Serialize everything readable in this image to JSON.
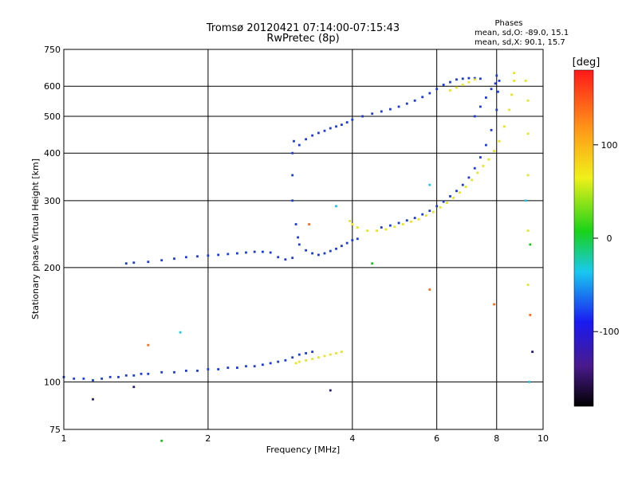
{
  "chart_data": {
    "type": "scatter",
    "title": "Tromsø 20120421 07:14:00-07:15:43",
    "subtitle": "RwPretec (8p)",
    "xlabel": "Frequency [MHz]",
    "ylabel": "Stationary phase Virtual Height [km]",
    "x_scale": "log",
    "y_scale": "log",
    "xlim": [
      1,
      10
    ],
    "ylim": [
      75,
      750
    ],
    "x_ticks": [
      1,
      2,
      4,
      6,
      8,
      10
    ],
    "y_ticks": [
      75,
      100,
      200,
      300,
      400,
      500,
      600,
      750
    ],
    "grid": true,
    "phases_box": {
      "heading": "Phases",
      "line_o": "mean, sd,O: -89.0, 15.1",
      "line_x": "mean, sd,X: 90.1, 15.7"
    },
    "colorbar": {
      "label": "[deg]",
      "range": [
        -180,
        180
      ],
      "ticks": [
        100,
        0,
        -100
      ]
    },
    "series": [
      {
        "phase_deg": -90,
        "color": "#1a3adc",
        "points": [
          [
            1.0,
            103
          ],
          [
            1.05,
            102
          ],
          [
            1.1,
            102
          ],
          [
            1.15,
            101
          ],
          [
            1.2,
            102
          ],
          [
            1.25,
            103
          ],
          [
            1.3,
            103
          ],
          [
            1.35,
            104
          ],
          [
            1.4,
            104
          ],
          [
            1.45,
            105
          ],
          [
            1.5,
            105
          ],
          [
            1.6,
            106
          ],
          [
            1.7,
            106
          ],
          [
            1.8,
            107
          ],
          [
            1.9,
            107
          ],
          [
            2.0,
            108
          ],
          [
            2.1,
            108
          ],
          [
            2.2,
            109
          ],
          [
            2.3,
            109
          ],
          [
            2.4,
            110
          ],
          [
            2.5,
            110
          ],
          [
            2.6,
            111
          ],
          [
            2.7,
            112
          ],
          [
            2.8,
            113
          ],
          [
            2.9,
            114
          ],
          [
            3.0,
            116
          ],
          [
            3.1,
            118
          ],
          [
            3.2,
            119
          ],
          [
            3.3,
            120
          ],
          [
            1.35,
            205
          ],
          [
            1.4,
            206
          ],
          [
            1.5,
            207
          ],
          [
            1.6,
            209
          ],
          [
            1.7,
            211
          ],
          [
            1.8,
            213
          ],
          [
            1.9,
            214
          ],
          [
            2.0,
            215
          ],
          [
            2.1,
            216
          ],
          [
            2.2,
            217
          ],
          [
            2.3,
            218
          ],
          [
            2.4,
            219
          ],
          [
            2.5,
            220
          ],
          [
            2.6,
            220
          ],
          [
            2.7,
            219
          ],
          [
            2.8,
            213
          ],
          [
            2.9,
            210
          ],
          [
            3.0,
            212
          ],
          [
            3.0,
            300
          ],
          [
            3.0,
            350
          ],
          [
            3.0,
            400
          ],
          [
            3.02,
            430
          ],
          [
            3.05,
            260
          ],
          [
            3.08,
            240
          ],
          [
            3.1,
            230
          ],
          [
            3.2,
            222
          ],
          [
            3.3,
            218
          ],
          [
            3.4,
            216
          ],
          [
            3.5,
            218
          ],
          [
            3.6,
            221
          ],
          [
            3.7,
            224
          ],
          [
            3.8,
            228
          ],
          [
            3.9,
            232
          ],
          [
            4.0,
            236
          ],
          [
            4.1,
            238
          ],
          [
            3.1,
            420
          ],
          [
            3.2,
            435
          ],
          [
            3.3,
            445
          ],
          [
            3.4,
            452
          ],
          [
            3.5,
            458
          ],
          [
            3.6,
            465
          ],
          [
            3.7,
            470
          ],
          [
            3.8,
            475
          ],
          [
            3.9,
            482
          ],
          [
            4.0,
            490
          ],
          [
            4.2,
            500
          ],
          [
            4.4,
            508
          ],
          [
            4.6,
            515
          ],
          [
            4.8,
            522
          ],
          [
            5.0,
            530
          ],
          [
            5.2,
            540
          ],
          [
            5.4,
            550
          ],
          [
            5.6,
            562
          ],
          [
            5.8,
            575
          ],
          [
            6.0,
            590
          ],
          [
            6.2,
            605
          ],
          [
            6.4,
            615
          ],
          [
            6.6,
            625
          ],
          [
            6.8,
            628
          ],
          [
            7.0,
            630
          ],
          [
            7.2,
            630
          ],
          [
            7.4,
            628
          ],
          [
            4.6,
            255
          ],
          [
            4.8,
            258
          ],
          [
            5.0,
            262
          ],
          [
            5.2,
            266
          ],
          [
            5.4,
            270
          ],
          [
            5.6,
            276
          ],
          [
            5.8,
            282
          ],
          [
            6.0,
            290
          ],
          [
            6.2,
            298
          ],
          [
            6.4,
            308
          ],
          [
            6.6,
            318
          ],
          [
            6.8,
            330
          ],
          [
            7.0,
            345
          ],
          [
            7.2,
            365
          ],
          [
            7.4,
            390
          ],
          [
            7.6,
            420
          ],
          [
            7.8,
            460
          ],
          [
            8.0,
            520
          ],
          [
            8.05,
            580
          ],
          [
            8.1,
            620
          ],
          [
            7.2,
            500
          ],
          [
            7.4,
            530
          ],
          [
            7.6,
            560
          ],
          [
            7.8,
            590
          ],
          [
            7.95,
            610
          ],
          [
            8.0,
            640
          ]
        ]
      },
      {
        "phase_deg": 90,
        "color": "#e6e61a",
        "points": [
          [
            3.05,
            112
          ],
          [
            3.1,
            113
          ],
          [
            3.2,
            114
          ],
          [
            3.3,
            115
          ],
          [
            3.4,
            116
          ],
          [
            3.5,
            117
          ],
          [
            3.6,
            118
          ],
          [
            3.7,
            119
          ],
          [
            3.8,
            120
          ],
          [
            3.95,
            265
          ],
          [
            4.0,
            260
          ],
          [
            4.1,
            255
          ],
          [
            4.3,
            250
          ],
          [
            4.5,
            250
          ],
          [
            4.7,
            252
          ],
          [
            4.9,
            256
          ],
          [
            5.1,
            260
          ],
          [
            5.3,
            264
          ],
          [
            5.5,
            268
          ],
          [
            5.7,
            274
          ],
          [
            5.9,
            280
          ],
          [
            6.1,
            288
          ],
          [
            6.3,
            296
          ],
          [
            6.5,
            305
          ],
          [
            6.7,
            315
          ],
          [
            6.9,
            326
          ],
          [
            7.1,
            340
          ],
          [
            7.3,
            355
          ],
          [
            7.5,
            370
          ],
          [
            7.7,
            385
          ],
          [
            7.9,
            405
          ],
          [
            8.1,
            430
          ],
          [
            8.3,
            470
          ],
          [
            8.5,
            520
          ],
          [
            8.6,
            570
          ],
          [
            8.7,
            620
          ],
          [
            8.7,
            650
          ],
          [
            6.4,
            585
          ],
          [
            6.6,
            595
          ],
          [
            6.8,
            605
          ],
          [
            7.0,
            615
          ],
          [
            7.2,
            625
          ],
          [
            9.3,
            180
          ],
          [
            9.3,
            250
          ],
          [
            9.3,
            350
          ],
          [
            9.3,
            450
          ],
          [
            9.3,
            550
          ],
          [
            9.2,
            620
          ]
        ]
      },
      {
        "phase_deg": 160,
        "color": "#ff6a1a",
        "points": [
          [
            1.5,
            125
          ],
          [
            3.25,
            260
          ],
          [
            5.8,
            175
          ],
          [
            7.9,
            160
          ],
          [
            9.4,
            150
          ]
        ]
      },
      {
        "phase_deg": 40,
        "color": "#19c519",
        "points": [
          [
            1.6,
            70
          ],
          [
            4.4,
            205
          ],
          [
            9.4,
            230
          ]
        ]
      },
      {
        "phase_deg": -30,
        "color": "#19c8e6",
        "points": [
          [
            1.75,
            135
          ],
          [
            3.7,
            290
          ],
          [
            5.8,
            330
          ],
          [
            9.2,
            300
          ],
          [
            9.35,
            100
          ]
        ]
      },
      {
        "phase_deg": -130,
        "color": "#2a1a78",
        "points": [
          [
            1.15,
            90
          ],
          [
            1.4,
            97
          ],
          [
            3.6,
            95
          ],
          [
            9.5,
            120
          ]
        ]
      }
    ]
  }
}
